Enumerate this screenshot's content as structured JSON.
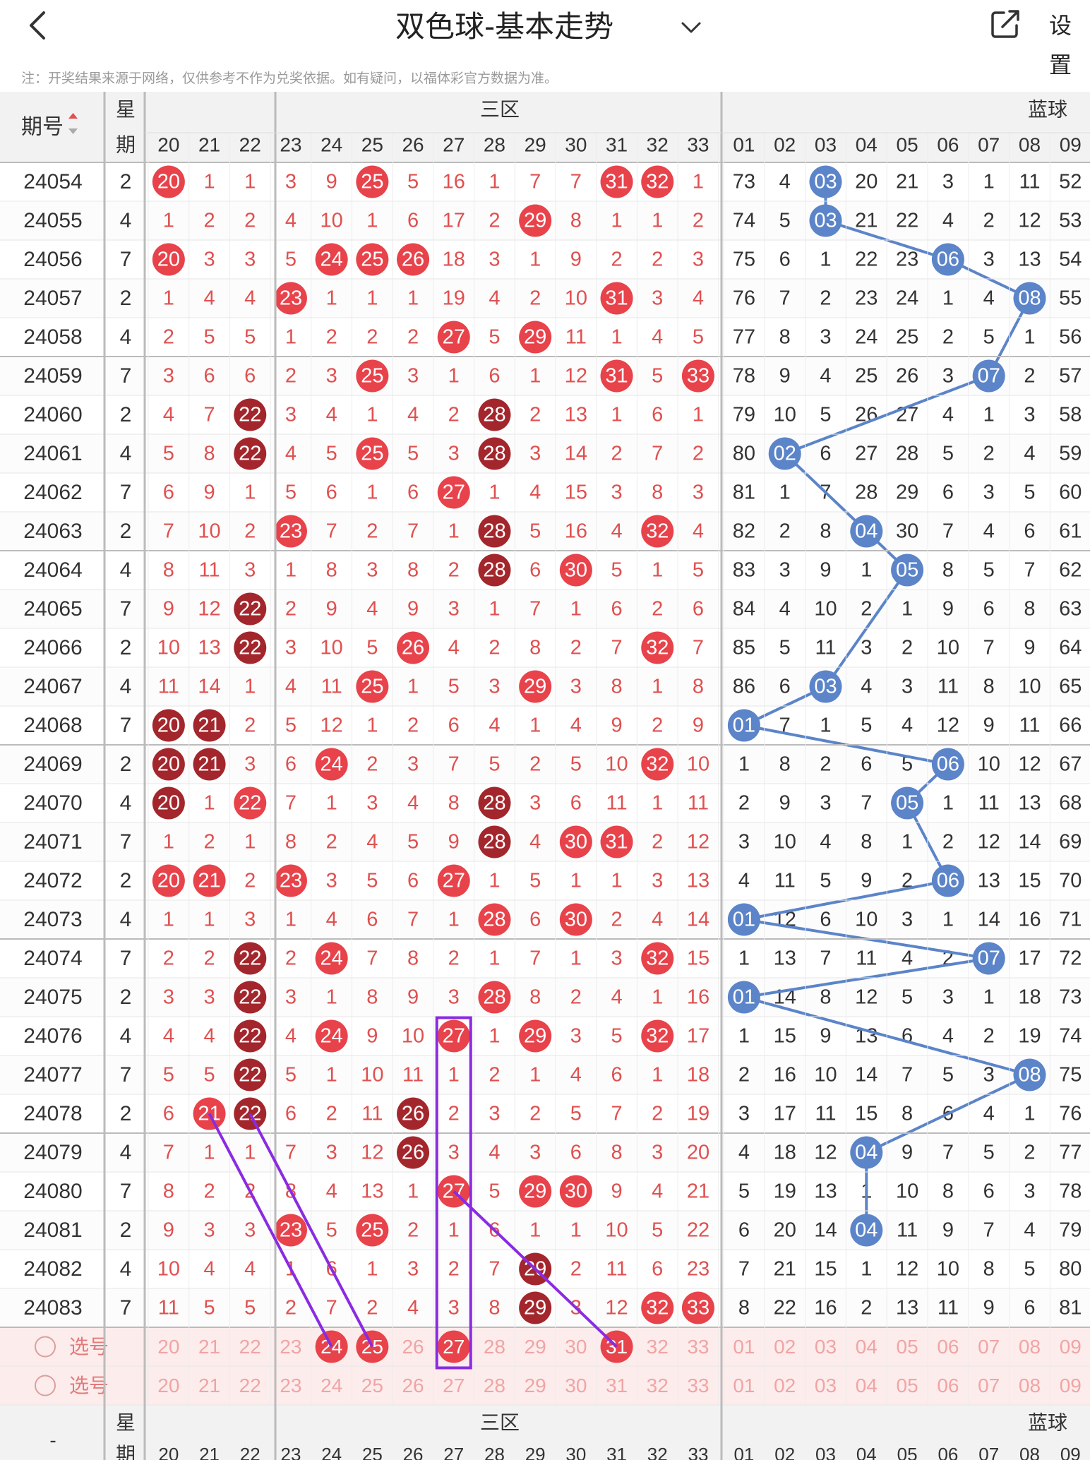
{
  "header": {
    "title": "双色球-基本走势",
    "settings_label": "设置",
    "notice": "注：开奖结果来源于网络，仅供参考不作为兑奖依据。如有疑问，以福体彩官方数据为准。"
  },
  "table": {
    "issue_header": "期号",
    "week_header": [
      "星",
      "期"
    ],
    "zone_label": "三区",
    "blue_label": "蓝球",
    "red_columns": [
      "20",
      "21",
      "22",
      "23",
      "24",
      "25",
      "26",
      "27",
      "28",
      "29",
      "30",
      "31",
      "32",
      "33"
    ],
    "blue_columns": [
      "01",
      "02",
      "03",
      "04",
      "05",
      "06",
      "07",
      "08",
      "09"
    ],
    "select_label": "选号",
    "footer_issue": "-",
    "rows": [
      {
        "issue": "24054",
        "week": "2",
        "red": [
          "20",
          "1",
          "1",
          "3",
          "9",
          "25",
          "5",
          "16",
          "1",
          "7",
          "7",
          "31",
          "32",
          "1"
        ],
        "blue": [
          "73",
          "4",
          "03",
          "20",
          "21",
          "3",
          "1",
          "11",
          "52"
        ]
      },
      {
        "issue": "24055",
        "week": "4",
        "red": [
          "1",
          "2",
          "2",
          "4",
          "10",
          "1",
          "6",
          "17",
          "2",
          "29",
          "8",
          "1",
          "1",
          "2"
        ],
        "blue": [
          "74",
          "5",
          "03",
          "21",
          "22",
          "4",
          "2",
          "12",
          "53"
        ]
      },
      {
        "issue": "24056",
        "week": "7",
        "red": [
          "20",
          "3",
          "3",
          "5",
          "24",
          "25",
          "26",
          "18",
          "3",
          "1",
          "9",
          "2",
          "2",
          "3"
        ],
        "blue": [
          "75",
          "6",
          "1",
          "22",
          "23",
          "06",
          "3",
          "13",
          "54"
        ]
      },
      {
        "issue": "24057",
        "week": "2",
        "red": [
          "1",
          "4",
          "4",
          "23",
          "1",
          "1",
          "1",
          "19",
          "4",
          "2",
          "10",
          "31",
          "3",
          "4"
        ],
        "blue": [
          "76",
          "7",
          "2",
          "23",
          "24",
          "1",
          "4",
          "08",
          "55"
        ]
      },
      {
        "issue": "24058",
        "week": "4",
        "red": [
          "2",
          "5",
          "5",
          "1",
          "2",
          "2",
          "2",
          "27",
          "5",
          "29",
          "11",
          "1",
          "4",
          "5"
        ],
        "blue": [
          "77",
          "8",
          "3",
          "24",
          "25",
          "2",
          "5",
          "1",
          "56"
        ]
      },
      {
        "issue": "24059",
        "week": "7",
        "red": [
          "3",
          "6",
          "6",
          "2",
          "3",
          "25",
          "3",
          "1",
          "6",
          "1",
          "12",
          "31",
          "5",
          "33"
        ],
        "blue": [
          "78",
          "9",
          "4",
          "25",
          "26",
          "3",
          "07",
          "2",
          "57"
        ]
      },
      {
        "issue": "24060",
        "week": "2",
        "red": [
          "4",
          "7",
          "22",
          "3",
          "4",
          "1",
          "4",
          "2",
          "28",
          "2",
          "13",
          "1",
          "6",
          "1"
        ],
        "blue": [
          "79",
          "10",
          "5",
          "26",
          "27",
          "4",
          "1",
          "3",
          "58"
        ]
      },
      {
        "issue": "24061",
        "week": "4",
        "red": [
          "5",
          "8",
          "22",
          "4",
          "5",
          "25",
          "5",
          "3",
          "28",
          "3",
          "14",
          "2",
          "7",
          "2"
        ],
        "blue": [
          "80",
          "02",
          "6",
          "27",
          "28",
          "5",
          "2",
          "4",
          "59"
        ]
      },
      {
        "issue": "24062",
        "week": "7",
        "red": [
          "6",
          "9",
          "1",
          "5",
          "6",
          "1",
          "6",
          "27",
          "1",
          "4",
          "15",
          "3",
          "8",
          "3"
        ],
        "blue": [
          "81",
          "1",
          "7",
          "28",
          "29",
          "6",
          "3",
          "5",
          "60"
        ]
      },
      {
        "issue": "24063",
        "week": "2",
        "red": [
          "7",
          "10",
          "2",
          "23",
          "7",
          "2",
          "7",
          "1",
          "28",
          "5",
          "16",
          "4",
          "32",
          "4"
        ],
        "blue": [
          "82",
          "2",
          "8",
          "04",
          "30",
          "7",
          "4",
          "6",
          "61"
        ]
      },
      {
        "issue": "24064",
        "week": "4",
        "red": [
          "8",
          "11",
          "3",
          "1",
          "8",
          "3",
          "8",
          "2",
          "28",
          "6",
          "30",
          "5",
          "1",
          "5"
        ],
        "blue": [
          "83",
          "3",
          "9",
          "1",
          "05",
          "8",
          "5",
          "7",
          "62"
        ]
      },
      {
        "issue": "24065",
        "week": "7",
        "red": [
          "9",
          "12",
          "22",
          "2",
          "9",
          "4",
          "9",
          "3",
          "1",
          "7",
          "1",
          "6",
          "2",
          "6"
        ],
        "blue": [
          "84",
          "4",
          "10",
          "2",
          "1",
          "9",
          "6",
          "8",
          "63"
        ]
      },
      {
        "issue": "24066",
        "week": "2",
        "red": [
          "10",
          "13",
          "22",
          "3",
          "10",
          "5",
          "26",
          "4",
          "2",
          "8",
          "2",
          "7",
          "32",
          "7"
        ],
        "blue": [
          "85",
          "5",
          "11",
          "3",
          "2",
          "10",
          "7",
          "9",
          "64"
        ]
      },
      {
        "issue": "24067",
        "week": "4",
        "red": [
          "11",
          "14",
          "1",
          "4",
          "11",
          "25",
          "1",
          "5",
          "3",
          "29",
          "3",
          "8",
          "1",
          "8"
        ],
        "blue": [
          "86",
          "6",
          "03",
          "4",
          "3",
          "11",
          "8",
          "10",
          "65"
        ]
      },
      {
        "issue": "24068",
        "week": "7",
        "red": [
          "20",
          "21",
          "2",
          "5",
          "12",
          "1",
          "2",
          "6",
          "4",
          "1",
          "4",
          "9",
          "2",
          "9"
        ],
        "blue": [
          "01",
          "7",
          "1",
          "5",
          "4",
          "12",
          "9",
          "11",
          "66"
        ]
      },
      {
        "issue": "24069",
        "week": "2",
        "red": [
          "20",
          "21",
          "3",
          "6",
          "24",
          "2",
          "3",
          "7",
          "5",
          "2",
          "5",
          "10",
          "32",
          "10"
        ],
        "blue": [
          "1",
          "8",
          "2",
          "6",
          "5",
          "06",
          "10",
          "12",
          "67"
        ]
      },
      {
        "issue": "24070",
        "week": "4",
        "red": [
          "20",
          "1",
          "22",
          "7",
          "1",
          "3",
          "4",
          "8",
          "28",
          "3",
          "6",
          "11",
          "1",
          "11"
        ],
        "blue": [
          "2",
          "9",
          "3",
          "7",
          "05",
          "1",
          "11",
          "13",
          "68"
        ]
      },
      {
        "issue": "24071",
        "week": "7",
        "red": [
          "1",
          "2",
          "1",
          "8",
          "2",
          "4",
          "5",
          "9",
          "28",
          "4",
          "30",
          "31",
          "2",
          "12"
        ],
        "blue": [
          "3",
          "10",
          "4",
          "8",
          "1",
          "2",
          "12",
          "14",
          "69"
        ]
      },
      {
        "issue": "24072",
        "week": "2",
        "red": [
          "20",
          "21",
          "2",
          "23",
          "3",
          "5",
          "6",
          "27",
          "1",
          "5",
          "1",
          "1",
          "3",
          "13"
        ],
        "blue": [
          "4",
          "11",
          "5",
          "9",
          "2",
          "06",
          "13",
          "15",
          "70"
        ]
      },
      {
        "issue": "24073",
        "week": "4",
        "red": [
          "1",
          "1",
          "3",
          "1",
          "4",
          "6",
          "7",
          "1",
          "28",
          "6",
          "30",
          "2",
          "4",
          "14"
        ],
        "blue": [
          "01",
          "12",
          "6",
          "10",
          "3",
          "1",
          "14",
          "16",
          "71"
        ]
      },
      {
        "issue": "24074",
        "week": "7",
        "red": [
          "2",
          "2",
          "22",
          "2",
          "24",
          "7",
          "8",
          "2",
          "1",
          "7",
          "1",
          "3",
          "32",
          "15"
        ],
        "blue": [
          "1",
          "13",
          "7",
          "11",
          "4",
          "2",
          "07",
          "17",
          "72"
        ]
      },
      {
        "issue": "24075",
        "week": "2",
        "red": [
          "3",
          "3",
          "22",
          "3",
          "1",
          "8",
          "9",
          "3",
          "28",
          "8",
          "2",
          "4",
          "1",
          "16"
        ],
        "blue": [
          "01",
          "14",
          "8",
          "12",
          "5",
          "3",
          "1",
          "18",
          "73"
        ]
      },
      {
        "issue": "24076",
        "week": "4",
        "red": [
          "4",
          "4",
          "22",
          "4",
          "24",
          "9",
          "10",
          "27",
          "1",
          "29",
          "3",
          "5",
          "32",
          "17"
        ],
        "blue": [
          "1",
          "15",
          "9",
          "13",
          "6",
          "4",
          "2",
          "19",
          "74"
        ]
      },
      {
        "issue": "24077",
        "week": "7",
        "red": [
          "5",
          "5",
          "22",
          "5",
          "1",
          "10",
          "11",
          "1",
          "2",
          "1",
          "4",
          "6",
          "1",
          "18"
        ],
        "blue": [
          "2",
          "16",
          "10",
          "14",
          "7",
          "5",
          "3",
          "08",
          "75"
        ]
      },
      {
        "issue": "24078",
        "week": "2",
        "red": [
          "6",
          "21",
          "22",
          "6",
          "2",
          "11",
          "26",
          "2",
          "3",
          "2",
          "5",
          "7",
          "2",
          "19"
        ],
        "blue": [
          "3",
          "17",
          "11",
          "15",
          "8",
          "6",
          "4",
          "1",
          "76"
        ]
      },
      {
        "issue": "24079",
        "week": "4",
        "red": [
          "7",
          "1",
          "1",
          "7",
          "3",
          "12",
          "26",
          "3",
          "4",
          "3",
          "6",
          "8",
          "3",
          "20"
        ],
        "blue": [
          "4",
          "18",
          "12",
          "04",
          "9",
          "7",
          "5",
          "2",
          "77"
        ]
      },
      {
        "issue": "24080",
        "week": "7",
        "red": [
          "8",
          "2",
          "2",
          "8",
          "4",
          "13",
          "1",
          "27",
          "5",
          "29",
          "30",
          "9",
          "4",
          "21"
        ],
        "blue": [
          "5",
          "19",
          "13",
          "1",
          "10",
          "8",
          "6",
          "3",
          "78"
        ]
      },
      {
        "issue": "24081",
        "week": "2",
        "red": [
          "9",
          "3",
          "3",
          "23",
          "5",
          "25",
          "2",
          "1",
          "6",
          "1",
          "1",
          "10",
          "5",
          "22"
        ],
        "blue": [
          "6",
          "20",
          "14",
          "04",
          "11",
          "9",
          "7",
          "4",
          "79"
        ]
      },
      {
        "issue": "24082",
        "week": "4",
        "red": [
          "10",
          "4",
          "4",
          "1",
          "6",
          "1",
          "3",
          "2",
          "7",
          "29",
          "2",
          "11",
          "6",
          "23"
        ],
        "blue": [
          "7",
          "21",
          "15",
          "1",
          "12",
          "10",
          "8",
          "5",
          "80"
        ]
      },
      {
        "issue": "24083",
        "week": "7",
        "red": [
          "11",
          "5",
          "5",
          "2",
          "7",
          "2",
          "4",
          "3",
          "8",
          "29",
          "3",
          "12",
          "32",
          "33"
        ],
        "blue": [
          "8",
          "22",
          "16",
          "2",
          "13",
          "11",
          "9",
          "6",
          "81"
        ]
      }
    ],
    "selection_rows": [
      {
        "selected_red": [
          "24",
          "25",
          "27",
          "31"
        ]
      },
      {
        "selected_red": []
      }
    ]
  },
  "colors": {
    "red_ball": "#e8424a",
    "dark_red_ball": "#a3262c",
    "blue_ball": "#5b84c9",
    "red_number": "#e05050",
    "highlight_line": "#8a2be2",
    "header_bg": "#f2f2f2"
  }
}
